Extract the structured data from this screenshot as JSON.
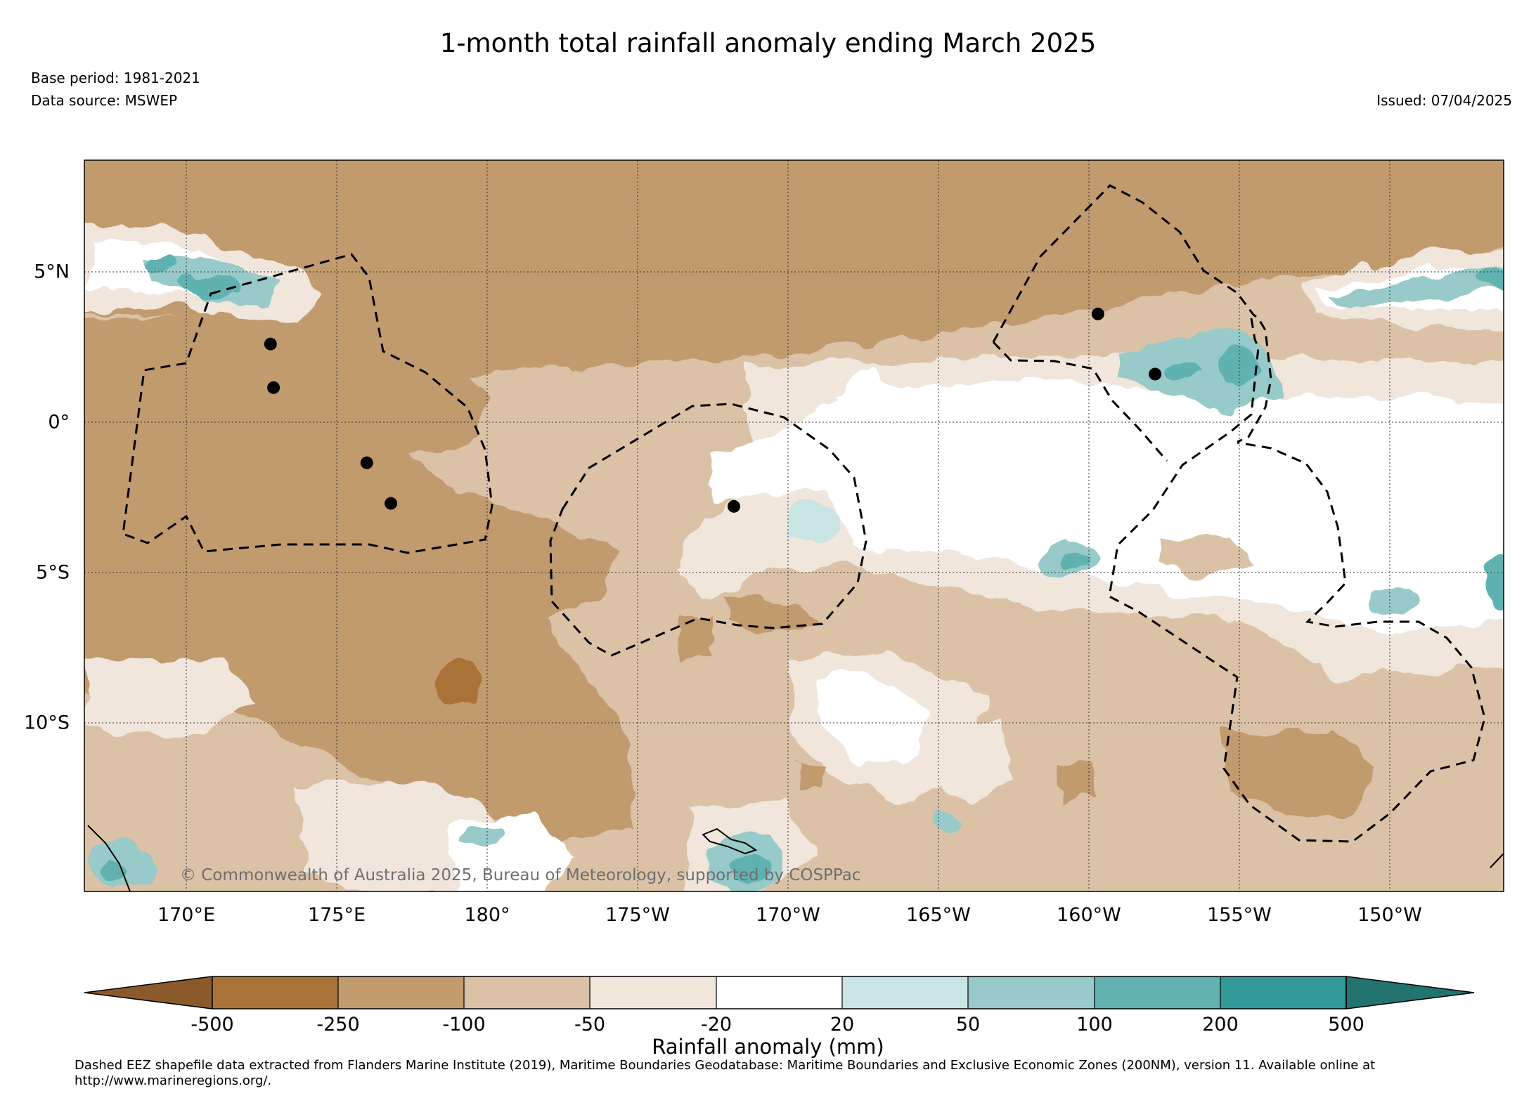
{
  "title": "1-month total rainfall anomaly ending March 2025",
  "base_period": "Base period: 1981-2021",
  "data_source": "Data source: MSWEP",
  "issued": "Issued: 07/04/2025",
  "copyright": "© Commonwealth of Australia 2025, Bureau of Meteorology, supported by COSPPac",
  "map": {
    "lat_labels": [
      {
        "label": "5°N",
        "lat": 5
      },
      {
        "label": "0°",
        "lat": 0
      },
      {
        "label": "5°S",
        "lat": -5
      },
      {
        "label": "10°S",
        "lat": -10
      }
    ],
    "lon_labels": [
      {
        "label": "170°E",
        "lon": 170
      },
      {
        "label": "175°E",
        "lon": 175
      },
      {
        "label": "180°",
        "lon": 180
      },
      {
        "label": "175°W",
        "lon": 185
      },
      {
        "label": "170°W",
        "lon": 190
      },
      {
        "label": "165°W",
        "lon": 195
      },
      {
        "label": "160°W",
        "lon": 200
      },
      {
        "label": "155°W",
        "lon": 205
      },
      {
        "label": "150°W",
        "lon": 210
      }
    ],
    "lon_range": [
      166.6,
      213.8
    ],
    "lat_range": [
      -15.5,
      8.8
    ],
    "islands": [
      {
        "lon": 172.8,
        "lat": 2.6
      },
      {
        "lon": 172.9,
        "lat": 1.15
      },
      {
        "lon": 176.0,
        "lat": -1.35
      },
      {
        "lon": 176.8,
        "lat": -2.7
      },
      {
        "lon": 188.2,
        "lat": -2.8
      },
      {
        "lon": 200.3,
        "lat": 3.6
      },
      {
        "lon": 202.2,
        "lat": 1.6
      }
    ]
  },
  "colorbar": {
    "label": "Rainfall anomaly (mm)",
    "ticks": [
      "-500",
      "-250",
      "-100",
      "-50",
      "-20",
      "20",
      "50",
      "100",
      "200",
      "500"
    ],
    "colors": [
      "#8b5a2b",
      "#a97338",
      "#c19a6e",
      "#dbc2a6",
      "#f0e6dc",
      "#ffffff",
      "#c8e4e3",
      "#97cac8",
      "#61b2b1",
      "#319997",
      "#23746f"
    ]
  },
  "footnote": "Dashed EEZ shapefile data extracted from Flanders Marine Institute (2019), Maritime Boundaries Geodatabase: Maritime Boundaries and Exclusive Economic Zones (200NM), version 11. Available online at http://www.marineregions.org/."
}
